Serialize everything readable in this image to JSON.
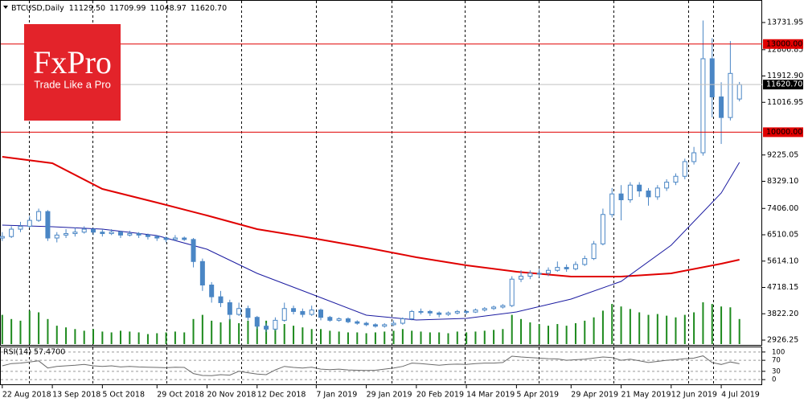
{
  "header": {
    "symbol": "BTCUSD,Daily",
    "ohlc": [
      "11129.50",
      "11709.99",
      "11048.97",
      "11620.70"
    ]
  },
  "logo": {
    "brand": "FxPro",
    "tagline": "Trade Like a Pro"
  },
  "chart_data": [
    {
      "type": "candlestick",
      "color": "#4a86c5",
      "xlim": [
        -1,
        334
      ],
      "ylim": [
        2735,
        14498
      ],
      "yticks": [
        {
          "value": 13731.95,
          "label": "13731.95"
        },
        {
          "value": 12806.85,
          "label": "12806.85"
        },
        {
          "value": 11912.9,
          "label": "11912.90"
        },
        {
          "value": 11016.95,
          "label": "11016.95"
        },
        {
          "value": 9225.05,
          "label": "9225.05"
        },
        {
          "value": 8329.1,
          "label": "8329.10"
        },
        {
          "value": 7406,
          "label": "7406.00"
        },
        {
          "value": 6510.05,
          "label": "6510.05"
        },
        {
          "value": 5614.1,
          "label": "5614.10"
        },
        {
          "value": 4718.15,
          "label": "4718.15"
        },
        {
          "value": 3822.2,
          "label": "3822.20"
        },
        {
          "value": 2926.25,
          "label": "2926.25"
        }
      ],
      "xticks": [
        {
          "value": 0,
          "label": "22 Aug 2018"
        },
        {
          "value": 22,
          "label": "13 Sep 2018"
        },
        {
          "value": 44,
          "label": "5 Oct 2018"
        },
        {
          "value": 68,
          "label": "29 Oct 2018"
        },
        {
          "value": 90,
          "label": "20 Nov 2018"
        },
        {
          "value": 112,
          "label": "12 Dec 2018"
        },
        {
          "value": 138,
          "label": "7 Jan 2019"
        },
        {
          "value": 160,
          "label": "29 Jan 2019"
        },
        {
          "value": 182,
          "label": "20 Feb 2019"
        },
        {
          "value": 204,
          "label": "14 Mar 2019"
        },
        {
          "value": 226,
          "label": "5 Apr 2019"
        },
        {
          "value": 250,
          "label": "29 Apr 2019"
        },
        {
          "value": 272,
          "label": "21 May 2019"
        },
        {
          "value": 294,
          "label": "12 Jun 2019"
        },
        {
          "value": 316,
          "label": "4 Jul 2019"
        }
      ],
      "levels": [
        {
          "value": 13000,
          "label": "13000.00",
          "color": "#e00000"
        },
        {
          "value": 10000,
          "label": "10000.00",
          "color": "#e00000"
        }
      ],
      "last": {
        "value": 11620.7,
        "label": "11620.70",
        "color": "#c0c0c0"
      },
      "x": [
        0,
        4,
        8,
        12,
        16,
        20,
        24,
        28,
        32,
        36,
        40,
        44,
        48,
        52,
        56,
        60,
        64,
        68,
        72,
        76,
        80,
        84,
        88,
        92,
        96,
        100,
        104,
        108,
        112,
        116,
        120,
        124,
        128,
        132,
        136,
        140,
        144,
        148,
        152,
        156,
        160,
        164,
        168,
        172,
        176,
        180,
        184,
        188,
        192,
        196,
        200,
        204,
        208,
        212,
        216,
        220,
        224,
        228,
        232,
        236,
        240,
        244,
        248,
        252,
        256,
        260,
        264,
        268,
        272,
        276,
        280,
        284,
        288,
        292,
        296,
        300,
        304,
        308,
        312,
        316,
        320,
        324
      ],
      "candles": [
        [
          6400,
          6600,
          6300,
          6450
        ],
        [
          6450,
          6800,
          6400,
          6700
        ],
        [
          6700,
          6950,
          6600,
          6800
        ],
        [
          6800,
          7150,
          6750,
          7000
        ],
        [
          7000,
          7400,
          6950,
          7300
        ],
        [
          7300,
          7350,
          6300,
          6400
        ],
        [
          6400,
          6600,
          6250,
          6500
        ],
        [
          6500,
          6700,
          6400,
          6550
        ],
        [
          6550,
          6750,
          6450,
          6600
        ],
        [
          6600,
          6800,
          6550,
          6700
        ],
        [
          6700,
          6750,
          6500,
          6600
        ],
        [
          6600,
          6700,
          6450,
          6550
        ],
        [
          6550,
          6700,
          6500,
          6600
        ],
        [
          6600,
          6650,
          6400,
          6500
        ],
        [
          6500,
          6650,
          6450,
          6550
        ],
        [
          6550,
          6600,
          6400,
          6500
        ],
        [
          6500,
          6550,
          6350,
          6450
        ],
        [
          6450,
          6500,
          6300,
          6400
        ],
        [
          6400,
          6450,
          6250,
          6350
        ],
        [
          6350,
          6500,
          6300,
          6400
        ],
        [
          6400,
          6450,
          6300,
          6350
        ],
        [
          6350,
          6400,
          5400,
          5600
        ],
        [
          5600,
          5700,
          4600,
          4800
        ],
        [
          4800,
          4900,
          4200,
          4400
        ],
        [
          4400,
          4600,
          4050,
          4200
        ],
        [
          4200,
          4300,
          3600,
          3800
        ],
        [
          3800,
          4200,
          3750,
          4000
        ],
        [
          4000,
          4100,
          3600,
          3700
        ],
        [
          3700,
          3750,
          3300,
          3400
        ],
        [
          3400,
          3500,
          3200,
          3300
        ],
        [
          3300,
          3700,
          3250,
          3600
        ],
        [
          3600,
          4200,
          3550,
          4000
        ],
        [
          4000,
          4100,
          3800,
          3900
        ],
        [
          3900,
          4000,
          3700,
          3800
        ],
        [
          3800,
          4100,
          3750,
          3950
        ],
        [
          3950,
          4000,
          3600,
          3700
        ],
        [
          3700,
          3750,
          3550,
          3600
        ],
        [
          3600,
          3700,
          3550,
          3650
        ],
        [
          3650,
          3700,
          3500,
          3550
        ],
        [
          3550,
          3600,
          3450,
          3500
        ],
        [
          3500,
          3550,
          3400,
          3450
        ],
        [
          3450,
          3500,
          3350,
          3400
        ],
        [
          3400,
          3500,
          3350,
          3450
        ],
        [
          3450,
          3600,
          3400,
          3500
        ],
        [
          3500,
          3700,
          3450,
          3650
        ],
        [
          3650,
          3950,
          3600,
          3900
        ],
        [
          3900,
          4000,
          3800,
          3900
        ],
        [
          3900,
          3950,
          3750,
          3850
        ],
        [
          3850,
          3900,
          3700,
          3800
        ],
        [
          3800,
          3900,
          3750,
          3850
        ],
        [
          3850,
          3950,
          3800,
          3900
        ],
        [
          3900,
          3950,
          3800,
          3880
        ],
        [
          3880,
          4000,
          3850,
          3950
        ],
        [
          3950,
          4050,
          3900,
          4000
        ],
        [
          4000,
          4100,
          3950,
          4050
        ],
        [
          4050,
          4150,
          4000,
          4100
        ],
        [
          4100,
          5100,
          4050,
          5000
        ],
        [
          5000,
          5300,
          4900,
          5100
        ],
        [
          5100,
          5300,
          5000,
          5200
        ],
        [
          5200,
          5350,
          5050,
          5200
        ],
        [
          5200,
          5400,
          5100,
          5300
        ],
        [
          5300,
          5600,
          5250,
          5400
        ],
        [
          5400,
          5500,
          5250,
          5350
        ],
        [
          5350,
          5600,
          5300,
          5500
        ],
        [
          5500,
          5800,
          5450,
          5700
        ],
        [
          5700,
          6300,
          5650,
          6200
        ],
        [
          6200,
          7400,
          6150,
          7200
        ],
        [
          7200,
          8100,
          7100,
          7900
        ],
        [
          7900,
          8200,
          7000,
          7700
        ],
        [
          7700,
          8300,
          7600,
          8200
        ],
        [
          8200,
          8300,
          7800,
          8000
        ],
        [
          8000,
          8100,
          7500,
          7800
        ],
        [
          7800,
          8200,
          7700,
          8100
        ],
        [
          8100,
          8400,
          8000,
          8300
        ],
        [
          8300,
          8600,
          8200,
          8500
        ],
        [
          8500,
          9100,
          8400,
          9000
        ],
        [
          9000,
          9500,
          8900,
          9300
        ],
        [
          9300,
          13800,
          9200,
          12500
        ],
        [
          12500,
          13200,
          10500,
          11200
        ],
        [
          11200,
          11700,
          9600,
          10500
        ],
        [
          10500,
          13100,
          10400,
          12000
        ],
        [
          11129.5,
          11709.99,
          11048.97,
          11620.7
        ]
      ],
      "volume": {
        "color": "#1e8a1e",
        "values": [
          35,
          30,
          28,
          40,
          38,
          30,
          22,
          20,
          18,
          16,
          18,
          15,
          14,
          16,
          15,
          14,
          12,
          13,
          14,
          15,
          14,
          30,
          35,
          28,
          26,
          30,
          25,
          28,
          30,
          28,
          26,
          24,
          22,
          20,
          18,
          18,
          16,
          15,
          14,
          14,
          13,
          14,
          15,
          16,
          18,
          16,
          15,
          14,
          14,
          13,
          15,
          14,
          15,
          16,
          17,
          18,
          35,
          30,
          26,
          24,
          22,
          24,
          22,
          25,
          28,
          32,
          40,
          48,
          45,
          42,
          38,
          35,
          36,
          34,
          32,
          35,
          38,
          50,
          48,
          45,
          44,
          30
        ]
      },
      "series": [
        {
          "color": "#e00000",
          "x": [
            0,
            22,
            44,
            68,
            90,
            112,
            138,
            160,
            182,
            204,
            226,
            250,
            272,
            294,
            316,
            324
          ],
          "values": [
            9164,
            8945,
            8070,
            7605,
            7167,
            6702,
            6373,
            6072,
            5744,
            5470,
            5251,
            5087,
            5087,
            5197,
            5525,
            5662
          ]
        },
        {
          "color": "#1a1aa0",
          "x": [
            0,
            22,
            44,
            68,
            90,
            112,
            138,
            160,
            182,
            204,
            226,
            250,
            272,
            294,
            316,
            324
          ],
          "values": [
            6838,
            6784,
            6702,
            6483,
            6018,
            5197,
            4431,
            3774,
            3610,
            3665,
            3884,
            4322,
            4923,
            6154,
            7933,
            8973
          ]
        }
      ]
    },
    {
      "type": "line",
      "title": "RSI(14) 57.4700",
      "color": "#6a6a6a",
      "ylim": [
        -20,
        117
      ],
      "yticks": [
        100,
        70,
        30,
        0
      ],
      "grid": true,
      "x": [
        0,
        4,
        8,
        12,
        16,
        20,
        24,
        28,
        32,
        36,
        40,
        44,
        48,
        52,
        56,
        60,
        64,
        68,
        72,
        76,
        80,
        84,
        88,
        92,
        96,
        100,
        104,
        108,
        112,
        116,
        120,
        124,
        128,
        132,
        136,
        140,
        144,
        148,
        152,
        156,
        160,
        164,
        168,
        172,
        176,
        180,
        184,
        188,
        192,
        196,
        200,
        204,
        208,
        212,
        216,
        220,
        224,
        228,
        232,
        236,
        240,
        244,
        248,
        252,
        256,
        260,
        264,
        268,
        272,
        276,
        280,
        284,
        288,
        292,
        296,
        300,
        304,
        308,
        312,
        316,
        320,
        324
      ],
      "values": [
        50,
        58,
        60,
        64,
        68,
        42,
        48,
        50,
        52,
        55,
        50,
        48,
        50,
        46,
        48,
        46,
        45,
        44,
        43,
        45,
        44,
        22,
        15,
        14,
        18,
        16,
        30,
        25,
        20,
        18,
        35,
        48,
        44,
        42,
        45,
        38,
        36,
        38,
        35,
        34,
        33,
        34,
        38,
        42,
        48,
        60,
        58,
        55,
        52,
        55,
        56,
        55,
        58,
        60,
        60,
        62,
        85,
        82,
        80,
        78,
        76,
        75,
        70,
        72,
        74,
        78,
        82,
        80,
        70,
        74,
        68,
        62,
        66,
        70,
        72,
        76,
        78,
        86,
        62,
        55,
        64,
        57.47
      ]
    }
  ]
}
